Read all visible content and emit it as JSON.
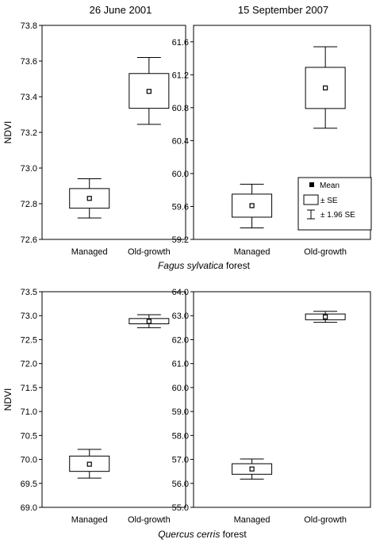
{
  "figure": {
    "col_titles": [
      "26 June 2001",
      "15 September 2007"
    ],
    "row_captions": [
      {
        "species": "Fagus sylvatica",
        "suffix": " forest"
      },
      {
        "species": "Quercus cerris",
        "suffix": " forest"
      }
    ],
    "legend": {
      "mean": "Mean",
      "se": "± SE",
      "ci": "± 1.96 SE"
    }
  },
  "chart_data": [
    {
      "type": "box",
      "title": "26 June 2001",
      "ylabel": "NDVI",
      "categories": [
        "Managed",
        "Old-growth"
      ],
      "ylim": [
        72.6,
        73.8
      ],
      "yticks": [
        "72.6",
        "72.8",
        "73.0",
        "73.2",
        "73.4",
        "73.6",
        "73.8"
      ],
      "stats": [
        {
          "mean": 72.83,
          "se_low": 72.775,
          "se_high": 72.885,
          "ci_low": 72.72,
          "ci_high": 72.94
        },
        {
          "mean": 73.43,
          "se_low": 73.335,
          "se_high": 73.53,
          "ci_low": 73.245,
          "ci_high": 73.62
        }
      ]
    },
    {
      "type": "box",
      "title": "15 September 2007",
      "ylabel": "",
      "categories": [
        "Managed",
        "Old-growth"
      ],
      "ylim": [
        59.2,
        61.8
      ],
      "yticks": [
        "59.2",
        "59.6",
        "60.0",
        "60.4",
        "60.8",
        "61.2",
        "61.6"
      ],
      "stats": [
        {
          "mean": 59.61,
          "se_low": 59.47,
          "se_high": 59.75,
          "ci_low": 59.34,
          "ci_high": 59.87
        },
        {
          "mean": 61.04,
          "se_low": 60.79,
          "se_high": 61.29,
          "ci_low": 60.55,
          "ci_high": 61.54
        }
      ]
    },
    {
      "type": "box",
      "title": "",
      "ylabel": "NDVI",
      "categories": [
        "Managed",
        "Old-growth"
      ],
      "ylim": [
        69.0,
        73.5
      ],
      "yticks": [
        "69.0",
        "69.5",
        "70.0",
        "70.5",
        "71.0",
        "71.5",
        "72.0",
        "72.5",
        "73.0",
        "73.5"
      ],
      "stats": [
        {
          "mean": 69.9,
          "se_low": 69.75,
          "se_high": 70.07,
          "ci_low": 69.61,
          "ci_high": 70.21
        },
        {
          "mean": 72.88,
          "se_low": 72.83,
          "se_high": 72.94,
          "ci_low": 72.75,
          "ci_high": 73.02
        }
      ]
    },
    {
      "type": "box",
      "title": "",
      "ylabel": "",
      "categories": [
        "Managed",
        "Old-growth"
      ],
      "ylim": [
        55.0,
        64.0
      ],
      "yticks": [
        "55.0",
        "56.0",
        "57.0",
        "58.0",
        "59.0",
        "60.0",
        "61.0",
        "62.0",
        "63.0",
        "64.0"
      ],
      "stats": [
        {
          "mean": 56.6,
          "se_low": 56.38,
          "se_high": 56.82,
          "ci_low": 56.18,
          "ci_high": 57.02
        },
        {
          "mean": 62.95,
          "se_low": 62.83,
          "se_high": 63.07,
          "ci_low": 62.72,
          "ci_high": 63.18
        }
      ]
    }
  ]
}
